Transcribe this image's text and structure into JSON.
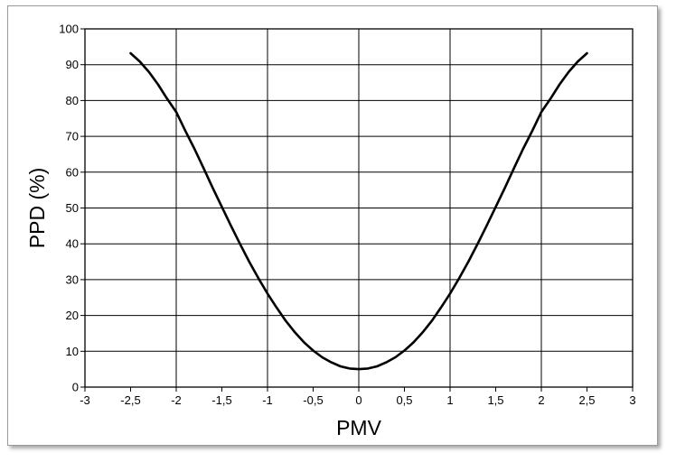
{
  "chart_data": {
    "type": "line",
    "title": "",
    "xlabel": "PMV",
    "ylabel": "PPD (%)",
    "xlim": [
      -3,
      3
    ],
    "ylim": [
      0,
      100
    ],
    "x_ticks": [
      "-3",
      "-2,5",
      "-2",
      "-1,5",
      "-1",
      "-0,5",
      "0",
      "0,5",
      "1",
      "1,5",
      "2",
      "2,5",
      "3"
    ],
    "y_ticks": [
      "0",
      "10",
      "20",
      "30",
      "40",
      "50",
      "60",
      "70",
      "80",
      "90",
      "100"
    ],
    "grid": true,
    "line_color": "#000000",
    "series": [
      {
        "x": [
          -2.5,
          -2.4,
          -2.3,
          -2.2,
          -2.1,
          -2.0,
          -1.9,
          -1.8,
          -1.7,
          -1.6,
          -1.5,
          -1.4,
          -1.3,
          -1.2,
          -1.1,
          -1.0,
          -0.9,
          -0.8,
          -0.7,
          -0.6,
          -0.5,
          -0.4,
          -0.3,
          -0.2,
          -0.1,
          0.0,
          0.1,
          0.2,
          0.3,
          0.4,
          0.5,
          0.6,
          0.7,
          0.8,
          0.9,
          1.0,
          1.1,
          1.2,
          1.3,
          1.4,
          1.5,
          1.6,
          1.7,
          1.8,
          1.9,
          2.0,
          2.1,
          2.2,
          2.3,
          2.4,
          2.5
        ],
        "y": [
          93.2,
          90.9,
          88.0,
          84.5,
          80.5,
          76.8,
          71.5,
          66.5,
          61.1,
          55.6,
          50.3,
          45.0,
          39.9,
          35.0,
          30.4,
          26.1,
          22.2,
          18.5,
          15.3,
          12.5,
          10.2,
          8.3,
          6.9,
          5.8,
          5.2,
          5.0,
          5.2,
          5.8,
          6.9,
          8.3,
          10.2,
          12.5,
          15.3,
          18.5,
          22.2,
          26.1,
          30.4,
          35.0,
          39.9,
          45.0,
          50.3,
          55.6,
          61.1,
          66.5,
          71.5,
          76.8,
          80.5,
          84.5,
          88.0,
          90.9,
          93.2
        ]
      }
    ]
  }
}
